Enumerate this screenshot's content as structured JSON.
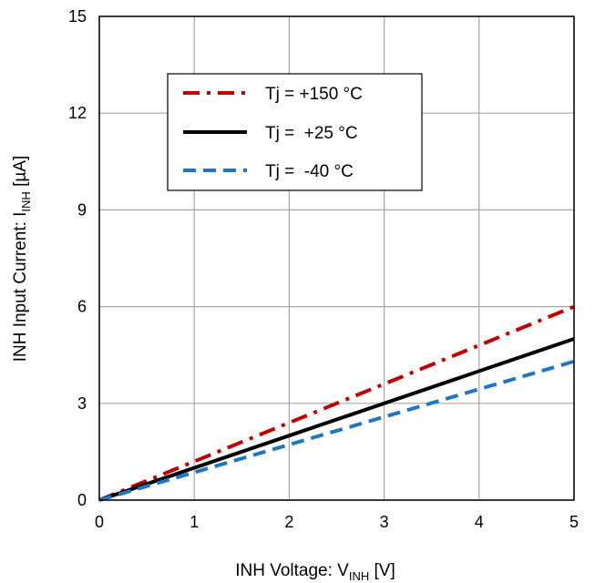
{
  "chart_data": {
    "type": "line",
    "title": "",
    "xlabel": {
      "main": "INH Voltage: V",
      "sub": "INH",
      "unit": " [V]"
    },
    "ylabel": {
      "main": "INH Input Current: I",
      "sub": "INH",
      "unit": " [µA]"
    },
    "xlim": [
      0,
      5
    ],
    "ylim": [
      0,
      15
    ],
    "xticks": [
      0,
      1,
      2,
      3,
      4,
      5
    ],
    "yticks": [
      0,
      3,
      6,
      9,
      12,
      15
    ],
    "grid": true,
    "legend_position": "upper-left inside plot",
    "series": [
      {
        "name": "Tj = +150 °C",
        "color": "#c00000",
        "style": "dash-dot",
        "x": [
          0,
          5
        ],
        "y": [
          0,
          6.0
        ]
      },
      {
        "name": "Tj =  +25 °C",
        "color": "#000000",
        "style": "solid",
        "x": [
          0,
          5
        ],
        "y": [
          0,
          5.0
        ]
      },
      {
        "name": "Tj =  -40 °C",
        "color": "#1f77c4",
        "style": "dashed",
        "x": [
          0,
          5
        ],
        "y": [
          0,
          4.3
        ]
      }
    ]
  }
}
